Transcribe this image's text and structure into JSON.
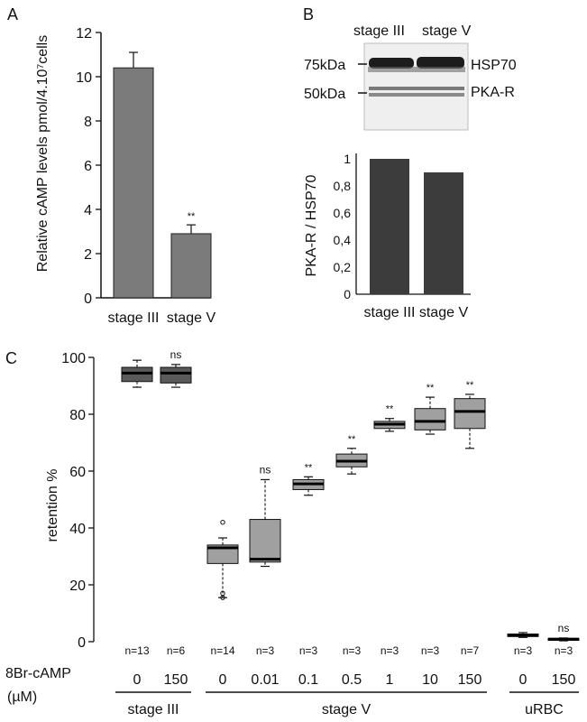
{
  "panels": {
    "A": "A",
    "B": "B",
    "C": "C"
  },
  "chart_data": [
    {
      "id": "A",
      "type": "bar",
      "categories": [
        "stage III",
        "stage V"
      ],
      "values": [
        10.4,
        2.9
      ],
      "errors": [
        0.7,
        0.4
      ],
      "annotations": [
        "",
        "**"
      ],
      "ylabel": "Relative cAMP levels pmol/4.10⁷cells",
      "ylim": [
        0,
        12
      ],
      "yticks": [
        0,
        2,
        4,
        6,
        8,
        10,
        12
      ],
      "bar_color": "#7b7b7b"
    },
    {
      "id": "B-blot",
      "type": "other",
      "lane_labels": [
        "stage III",
        "stage V"
      ],
      "markers": [
        "75kDa",
        "50kDa"
      ],
      "bands": [
        "HSP70",
        "PKA-R"
      ]
    },
    {
      "id": "B",
      "type": "bar",
      "categories": [
        "stage III",
        "stage V"
      ],
      "values": [
        1.0,
        0.9
      ],
      "ylabel": "PKA-R / HSP70",
      "ylim": [
        0,
        1
      ],
      "ytick_labels": [
        "0",
        "0,2",
        "0,4",
        "0,6",
        "0,8",
        "1"
      ],
      "bar_color": "#3c3c3c"
    },
    {
      "id": "C",
      "type": "box",
      "ylabel": "retention %",
      "ylim": [
        0,
        100
      ],
      "yticks": [
        0,
        20,
        40,
        60,
        80,
        100
      ],
      "x_title_line1": "8Br-cAMP",
      "x_title_line2": "(µM)",
      "boxes": [
        {
          "group": "stage III",
          "dose": "0",
          "n": "n=13",
          "sig": "",
          "color": "#5a5a5a",
          "min": 89.5,
          "q1": 91.5,
          "median": 94.5,
          "q3": 96.5,
          "max": 99,
          "outliers": []
        },
        {
          "group": "stage III",
          "dose": "150",
          "n": "n=6",
          "sig": "ns",
          "color": "#5a5a5a",
          "min": 89.5,
          "q1": 91,
          "median": 94.5,
          "q3": 96.5,
          "max": 97.5,
          "outliers": []
        },
        {
          "group": "stage V",
          "dose": "0",
          "n": "n=14",
          "sig": "",
          "color": "#a0a0a0",
          "min": 15.5,
          "q1": 27.5,
          "median": 33,
          "q3": 34,
          "max": 36.5,
          "outliers": [
            42,
            17,
            15.5
          ]
        },
        {
          "group": "stage V",
          "dose": "0.01",
          "n": "n=3",
          "sig": "ns",
          "color": "#a0a0a0",
          "min": 26.5,
          "q1": 28,
          "median": 29,
          "q3": 43,
          "max": 57,
          "outliers": []
        },
        {
          "group": "stage V",
          "dose": "0.1",
          "n": "n=3",
          "sig": "**",
          "color": "#a0a0a0",
          "min": 51.5,
          "q1": 53.5,
          "median": 55.5,
          "q3": 57,
          "max": 58,
          "outliers": []
        },
        {
          "group": "stage V",
          "dose": "0.5",
          "n": "n=3",
          "sig": "**",
          "color": "#a0a0a0",
          "min": 59,
          "q1": 61.5,
          "median": 63.5,
          "q3": 66,
          "max": 68,
          "outliers": []
        },
        {
          "group": "stage V",
          "dose": "1",
          "n": "n=3",
          "sig": "**",
          "color": "#a0a0a0",
          "min": 74,
          "q1": 75,
          "median": 76.5,
          "q3": 77.5,
          "max": 78.5,
          "outliers": []
        },
        {
          "group": "stage V",
          "dose": "10",
          "n": "n=3",
          "sig": "**",
          "color": "#a0a0a0",
          "min": 73,
          "q1": 74.5,
          "median": 77.5,
          "q3": 82,
          "max": 86,
          "outliers": []
        },
        {
          "group": "stage V",
          "dose": "150",
          "n": "n=7",
          "sig": "**",
          "color": "#a0a0a0",
          "min": 68,
          "q1": 75,
          "median": 81,
          "q3": 85.5,
          "max": 87,
          "outliers": []
        },
        {
          "group": "uRBC",
          "dose": "0",
          "n": "n=3",
          "sig": "",
          "color": "#6e6e6e",
          "min": 1.5,
          "q1": 1.8,
          "median": 2.3,
          "q3": 2.7,
          "max": 3.2,
          "outliers": []
        },
        {
          "group": "uRBC",
          "dose": "150",
          "n": "n=3",
          "sig": "ns",
          "color": "#6e6e6e",
          "min": 0.3,
          "q1": 0.6,
          "median": 0.9,
          "q3": 1.1,
          "max": 1.3,
          "outliers": []
        }
      ],
      "groups": [
        "stage III",
        "stage V",
        "uRBC"
      ]
    }
  ]
}
